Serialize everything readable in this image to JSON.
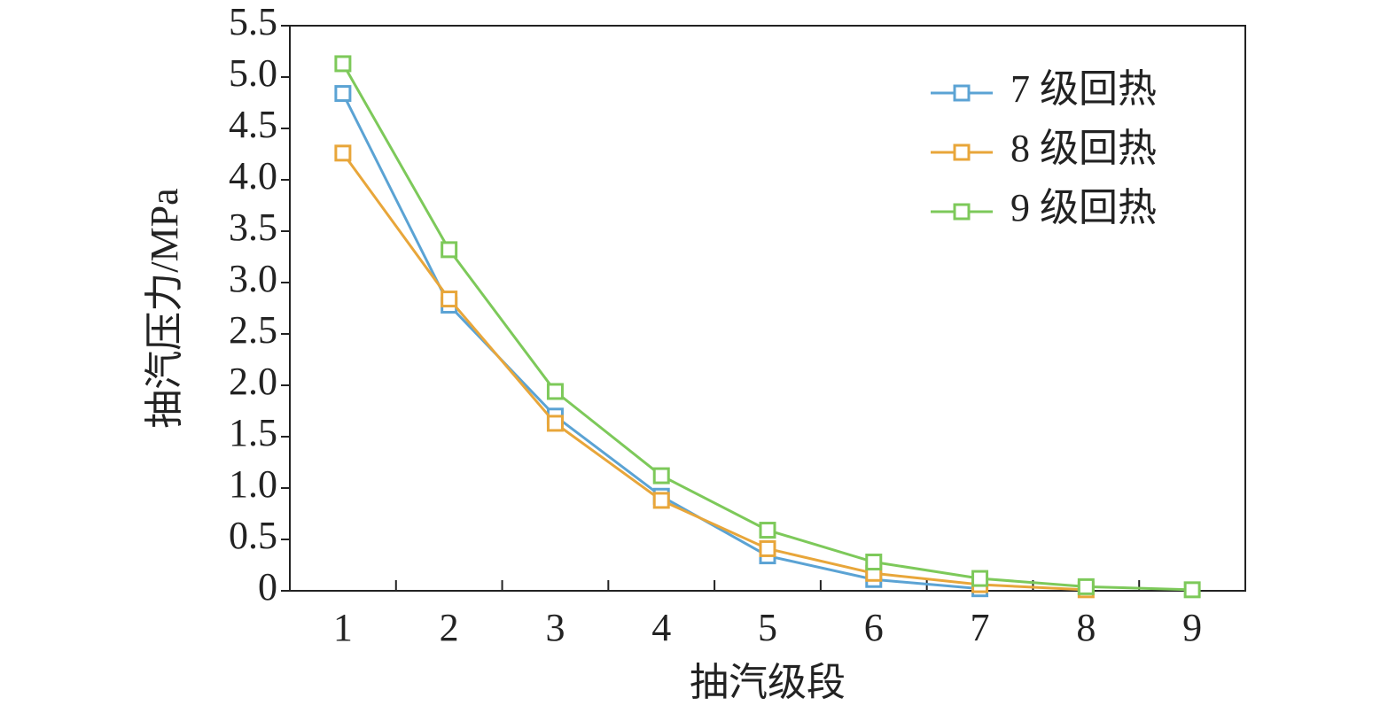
{
  "chart_data": {
    "type": "line",
    "x_label": "抽汽级段",
    "y_label": "抽汽压力/MPa",
    "categories": [
      "1",
      "2",
      "3",
      "4",
      "5",
      "6",
      "7",
      "8",
      "9"
    ],
    "series": [
      {
        "name": "7 级回热",
        "color": "#5ba3d4",
        "values": [
          4.84,
          2.78,
          1.7,
          0.92,
          0.34,
          0.11,
          0.02,
          null,
          null
        ]
      },
      {
        "name": "8 级回热",
        "color": "#e8a63a",
        "values": [
          4.26,
          2.84,
          1.63,
          0.88,
          0.41,
          0.17,
          0.06,
          0.01,
          null
        ]
      },
      {
        "name": "9 级回热",
        "color": "#7dc95a",
        "values": [
          5.13,
          3.32,
          1.94,
          1.12,
          0.59,
          0.28,
          0.12,
          0.04,
          0.01
        ]
      }
    ],
    "ylim": [
      0,
      5.5
    ],
    "yticks": [
      0,
      0.5,
      {
        "value": 1,
        "label": "1.0"
      },
      1.5,
      {
        "value": 2,
        "label": "2.0"
      },
      2.5,
      {
        "value": 3,
        "label": "3.0"
      },
      3.5,
      {
        "value": 4,
        "label": "4.0"
      },
      4.5,
      {
        "value": 5,
        "label": "5.0"
      },
      5.5
    ],
    "legend": "upper right",
    "marker": "square",
    "grid": false
  }
}
